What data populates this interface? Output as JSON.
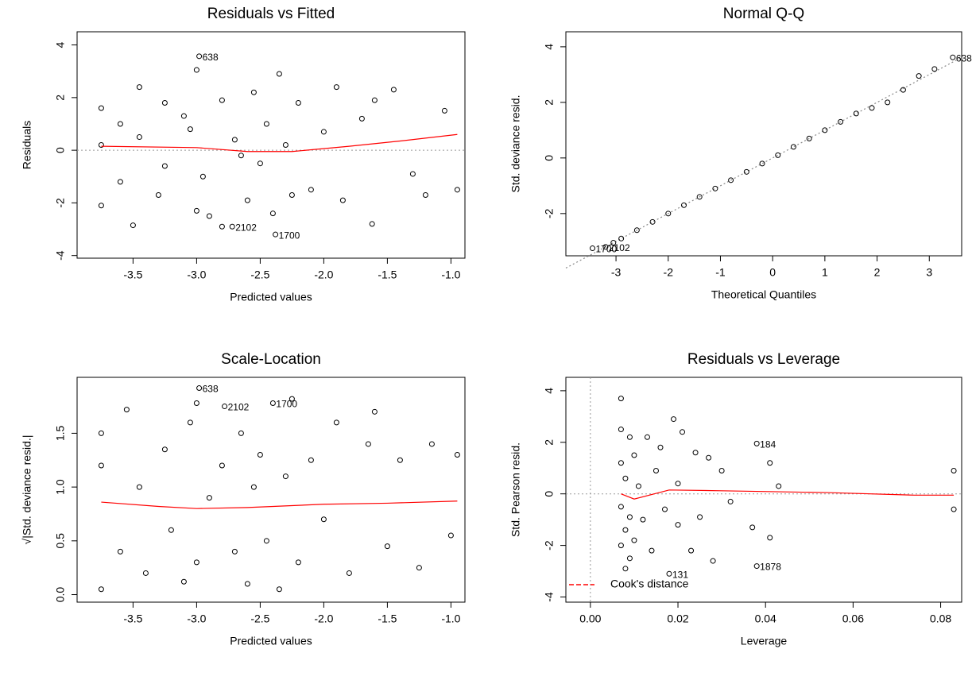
{
  "chart_data": [
    {
      "type": "scatter",
      "title": "Residuals vs Fitted",
      "x_label": "Predicted values",
      "y_label": "Residuals",
      "xlim": [
        -3.94,
        -0.89
      ],
      "ylim": [
        -4.1,
        4.5
      ],
      "xticks": [
        -3.5,
        {
          "value": -3,
          "label": "-3.0"
        },
        -2.5,
        {
          "value": -2,
          "label": "-2.0"
        },
        -1.5,
        {
          "value": -1,
          "label": "-1.0"
        }
      ],
      "yticks": [
        -4,
        -2,
        0,
        2,
        4
      ],
      "color": "#000000",
      "zero_line": true,
      "x": [
        -3.75,
        -3.75,
        -3.75,
        -3.6,
        -3.6,
        -3.5,
        -3.45,
        -3.45,
        -3.3,
        -3.25,
        -3.25,
        -3.1,
        -3.05,
        -3.0,
        -3.0,
        -2.98,
        -2.95,
        -2.9,
        -2.8,
        -2.8,
        -2.7,
        -2.6,
        -2.55,
        -2.5,
        -2.45,
        -2.4,
        -2.35,
        -2.3,
        -2.25,
        -2.2,
        -2.1,
        -2.0,
        -1.9,
        -1.85,
        -1.7,
        -1.62,
        -1.6,
        -1.45,
        -1.3,
        -1.2,
        -1.05,
        -0.95,
        -2.65,
        -2.72,
        -2.38
      ],
      "values": [
        1.6,
        0.2,
        -2.1,
        1.0,
        -1.2,
        -2.85,
        2.4,
        0.5,
        -1.7,
        1.8,
        -0.6,
        1.3,
        0.8,
        3.05,
        -2.3,
        3.57,
        -1.0,
        -2.5,
        1.9,
        -2.9,
        0.4,
        -1.9,
        2.2,
        -0.5,
        1.0,
        -2.4,
        2.9,
        0.2,
        -1.7,
        1.8,
        -1.5,
        0.7,
        2.4,
        -1.9,
        1.2,
        -2.8,
        1.9,
        2.3,
        -0.9,
        -1.7,
        1.5,
        -1.5,
        -0.2,
        -2.9,
        -3.2
      ],
      "line": {
        "color": "#ff0000",
        "x": [
          -3.75,
          -3.0,
          -2.6,
          -2.25,
          -1.8,
          -1.4,
          -0.95
        ],
        "values": [
          0.15,
          0.1,
          -0.05,
          -0.05,
          0.15,
          0.35,
          0.6
        ]
      },
      "annotations": [
        {
          "text": "638",
          "x": -2.98,
          "y": 3.57
        },
        {
          "text": "2102",
          "x": -2.72,
          "y": -2.9
        },
        {
          "text": "1700",
          "x": -2.38,
          "y": -3.2
        }
      ]
    },
    {
      "type": "scatter",
      "title": "Normal Q-Q",
      "x_label": "Theoretical Quantiles",
      "y_label": "Std. deviance resid.",
      "xlim": [
        -3.96,
        3.62
      ],
      "ylim": [
        -3.52,
        4.54
      ],
      "xticks": [
        -3,
        -2,
        -1,
        0,
        1,
        2,
        3
      ],
      "yticks": [
        -2,
        0,
        2,
        4
      ],
      "color": "#000000",
      "x": [
        -3.45,
        -3.2,
        -3.05,
        -2.9,
        -2.6,
        -2.3,
        -2.0,
        -1.7,
        -1.4,
        -1.1,
        -0.8,
        -0.5,
        -0.2,
        0.1,
        0.4,
        0.7,
        1.0,
        1.3,
        1.6,
        1.9,
        2.2,
        2.5,
        2.8,
        3.1,
        3.45
      ],
      "values": [
        -3.25,
        -3.2,
        -3.05,
        -2.9,
        -2.6,
        -2.3,
        -2.0,
        -1.7,
        -1.4,
        -1.1,
        -0.8,
        -0.5,
        -0.2,
        0.1,
        0.4,
        0.7,
        1.0,
        1.3,
        1.6,
        1.8,
        2.0,
        2.45,
        2.95,
        3.2,
        3.62
      ],
      "reference_line": {
        "color": "#888888",
        "x": [
          -3.96,
          3.62
        ],
        "values": [
          -3.96,
          3.62
        ]
      },
      "annotations": [
        {
          "text": "638",
          "x": 3.45,
          "y": 3.62
        },
        {
          "text": "1700",
          "x": -3.45,
          "y": -3.25
        },
        {
          "text": "2102",
          "x": -3.2,
          "y": -3.2
        }
      ]
    },
    {
      "type": "scatter",
      "title": "Scale-Location",
      "x_label": "Predicted values",
      "y_label": "√|Std. deviance resid.|",
      "xlim": [
        -3.94,
        -0.89
      ],
      "ylim": [
        -0.07,
        2.02
      ],
      "xticks": [
        -3.5,
        {
          "value": -3,
          "label": "-3.0"
        },
        -2.5,
        {
          "value": -2,
          "label": "-2.0"
        },
        -1.5,
        {
          "value": -1,
          "label": "-1.0"
        }
      ],
      "yticks": [
        {
          "value": 0,
          "label": "0.0"
        },
        0.5,
        {
          "value": 1,
          "label": "1.0"
        },
        1.5
      ],
      "color": "#000000",
      "x": [
        -3.75,
        -3.75,
        -3.75,
        -3.6,
        -3.55,
        -3.45,
        -3.4,
        -3.25,
        -3.2,
        -3.1,
        -3.05,
        -3.0,
        -3.0,
        -2.98,
        -2.9,
        -2.8,
        -2.78,
        -2.7,
        -2.65,
        -2.6,
        -2.55,
        -2.5,
        -2.45,
        -2.4,
        -2.35,
        -2.3,
        -2.25,
        -2.2,
        -2.1,
        -2.0,
        -1.9,
        -1.8,
        -1.65,
        -1.6,
        -1.5,
        -1.4,
        -1.25,
        -1.15,
        -1.0,
        -0.95
      ],
      "values": [
        1.5,
        0.05,
        1.2,
        0.4,
        1.72,
        1.0,
        0.2,
        1.35,
        0.6,
        0.12,
        1.6,
        0.3,
        1.78,
        1.92,
        0.9,
        1.2,
        1.75,
        0.4,
        1.5,
        0.1,
        1.0,
        1.3,
        0.5,
        1.78,
        0.05,
        1.1,
        1.82,
        0.3,
        1.25,
        0.7,
        1.6,
        0.2,
        1.4,
        1.7,
        0.45,
        1.25,
        0.25,
        1.4,
        0.55,
        1.3
      ],
      "line": {
        "color": "#ff0000",
        "x": [
          -3.75,
          -3.3,
          -3.0,
          -2.6,
          -2.0,
          -1.5,
          -0.95
        ],
        "values": [
          0.86,
          0.82,
          0.8,
          0.81,
          0.84,
          0.85,
          0.87
        ]
      },
      "annotations": [
        {
          "text": "638",
          "x": -2.98,
          "y": 1.92
        },
        {
          "text": "2102",
          "x": -2.78,
          "y": 1.75
        },
        {
          "text": "1700",
          "x": -2.4,
          "y": 1.78
        }
      ]
    },
    {
      "type": "scatter",
      "title": "Residuals vs Leverage",
      "x_label": "Leverage",
      "y_label": "Std. Pearson resid.",
      "xlim": [
        -0.0056,
        0.0848
      ],
      "ylim": [
        -4.2,
        4.52
      ],
      "xticks": [
        {
          "value": 0,
          "label": "0.00"
        },
        0.02,
        0.04,
        0.06,
        0.08
      ],
      "yticks": [
        -4,
        -2,
        0,
        2,
        4
      ],
      "color": "#000000",
      "zero_line": true,
      "zero_vline": true,
      "x": [
        0.007,
        0.007,
        0.007,
        0.007,
        0.007,
        0.008,
        0.008,
        0.008,
        0.009,
        0.009,
        0.009,
        0.01,
        0.01,
        0.011,
        0.012,
        0.013,
        0.014,
        0.015,
        0.016,
        0.017,
        0.018,
        0.019,
        0.02,
        0.02,
        0.021,
        0.023,
        0.024,
        0.025,
        0.027,
        0.028,
        0.03,
        0.032,
        0.038,
        0.037,
        0.038,
        0.041,
        0.041,
        0.043,
        0.083,
        0.083
      ],
      "values": [
        3.7,
        2.5,
        1.2,
        -0.5,
        -2.0,
        -2.9,
        0.6,
        -1.4,
        2.2,
        -0.9,
        -2.5,
        1.5,
        -1.8,
        0.3,
        -1.0,
        2.2,
        -2.2,
        0.9,
        1.8,
        -0.6,
        -3.1,
        2.9,
        -1.2,
        0.4,
        2.4,
        -2.2,
        1.6,
        -0.9,
        1.4,
        -2.6,
        0.9,
        -0.3,
        1.95,
        -1.3,
        -2.8,
        1.2,
        -1.7,
        0.3,
        0.9,
        -0.6
      ],
      "line": {
        "color": "#ff0000",
        "x": [
          0.007,
          0.01,
          0.018,
          0.03,
          0.054,
          0.074,
          0.083
        ],
        "values": [
          0.0,
          -0.2,
          0.15,
          0.12,
          0.05,
          -0.05,
          -0.05
        ]
      },
      "legend": {
        "text": "Cook's distance",
        "position": "bottom-left",
        "color": "#ff0000"
      },
      "annotations": [
        {
          "text": "184",
          "x": 0.038,
          "y": 1.95
        },
        {
          "text": "131",
          "x": 0.018,
          "y": -3.1
        },
        {
          "text": "1878",
          "x": 0.038,
          "y": -2.8
        }
      ]
    }
  ]
}
